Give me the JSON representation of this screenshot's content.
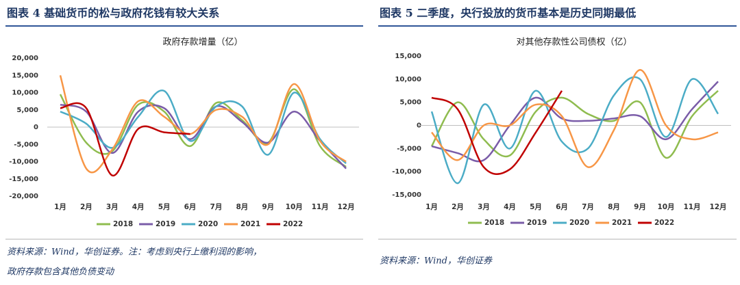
{
  "headings": [
    "图表 4  基础货币的松与政府花钱有较大关系",
    "图表 5  二季度，央行投放的货币基本是历史同期最低"
  ],
  "sources": [
    [
      "资料来源：Wind，华创证券。注：考虑到央行上缴利润的影响，",
      "政府存款包含其他负债变动"
    ],
    [
      "资料来源：Wind，华创证券"
    ]
  ],
  "chart_data": [
    {
      "type": "line",
      "title": "政府存款增量（亿）",
      "categories": [
        "1月",
        "2月",
        "3月",
        "4月",
        "5月",
        "6月",
        "7月",
        "8月",
        "9月",
        "10月",
        "11月",
        "12月"
      ],
      "ylim": [
        -20000,
        20000
      ],
      "yticks": [
        {
          "value": -20000,
          "label": "-20,000"
        },
        {
          "value": -15000,
          "label": "-15,000"
        },
        {
          "value": -10000,
          "label": "-10,000"
        },
        {
          "value": -5000,
          "label": "-5,000"
        },
        0,
        {
          "value": 5000,
          "label": "5,000"
        },
        {
          "value": 10000,
          "label": "10,000"
        },
        {
          "value": 15000,
          "label": "15,000"
        },
        {
          "value": 20000,
          "label": "20,000"
        }
      ],
      "series": [
        {
          "name": "2018",
          "color": "#8fbc4f",
          "values": [
            9500,
            -4500,
            -7000,
            6500,
            4500,
            -5500,
            7000,
            2000,
            -4500,
            11000,
            -5500,
            -11500
          ]
        },
        {
          "name": "2019",
          "color": "#7a5ca8",
          "values": [
            6500,
            4500,
            -7500,
            4500,
            5500,
            -3500,
            6000,
            1500,
            -4500,
            4500,
            -4000,
            -12000
          ]
        },
        {
          "name": "2020",
          "color": "#4bacc6",
          "values": [
            4500,
            1000,
            -6000,
            3000,
            10500,
            -4000,
            6000,
            6000,
            -8000,
            10000,
            -3500,
            -10500
          ]
        },
        {
          "name": "2021",
          "color": "#f79646",
          "values": [
            15000,
            -12000,
            -6500,
            7500,
            3000,
            -2000,
            5000,
            3000,
            -5000,
            12500,
            -4000,
            -10000
          ]
        },
        {
          "name": "2022",
          "color": "#c00000",
          "values": [
            5500,
            5500,
            -14000,
            -500,
            -1500,
            -2000,
            null,
            null,
            null,
            null,
            null,
            null
          ]
        }
      ]
    },
    {
      "type": "line",
      "title": "对其他存款性公司债权（亿）",
      "categories": [
        "1月",
        "2月",
        "3月",
        "4月",
        "5月",
        "6月",
        "7月",
        "8月",
        "9月",
        "10月",
        "11月",
        "12月"
      ],
      "ylim": [
        -15000,
        15000
      ],
      "yticks": [
        {
          "value": -15000,
          "label": "-15,000"
        },
        {
          "value": -10000,
          "label": "-10,000"
        },
        {
          "value": -5000,
          "label": "-5,000"
        },
        0,
        {
          "value": 5000,
          "label": "5,000"
        },
        {
          "value": 10000,
          "label": "10,000"
        },
        {
          "value": 15000,
          "label": "15,000"
        }
      ],
      "series": [
        {
          "name": "2018",
          "color": "#8fbc4f",
          "values": [
            -4500,
            5000,
            -3000,
            -6500,
            3000,
            6000,
            2500,
            1000,
            5000,
            -7000,
            2000,
            7500
          ]
        },
        {
          "name": "2019",
          "color": "#7a5ca8",
          "values": [
            -4500,
            -6000,
            -7500,
            0,
            6000,
            1500,
            1000,
            1500,
            2000,
            -3000,
            3500,
            9500
          ]
        },
        {
          "name": "2020",
          "color": "#4bacc6",
          "values": [
            3000,
            -12500,
            4500,
            -5000,
            7500,
            -3500,
            -5000,
            6500,
            10000,
            -2500,
            10000,
            2500
          ]
        },
        {
          "name": "2021",
          "color": "#f79646",
          "values": [
            -1500,
            -7500,
            0,
            0,
            4500,
            2000,
            -9000,
            -1000,
            12000,
            0,
            -3000,
            -1500
          ]
        },
        {
          "name": "2022",
          "color": "#c00000",
          "values": [
            6000,
            3500,
            -9000,
            -9500,
            -1500,
            7500,
            null,
            null,
            null,
            null,
            null,
            null
          ]
        }
      ]
    }
  ]
}
